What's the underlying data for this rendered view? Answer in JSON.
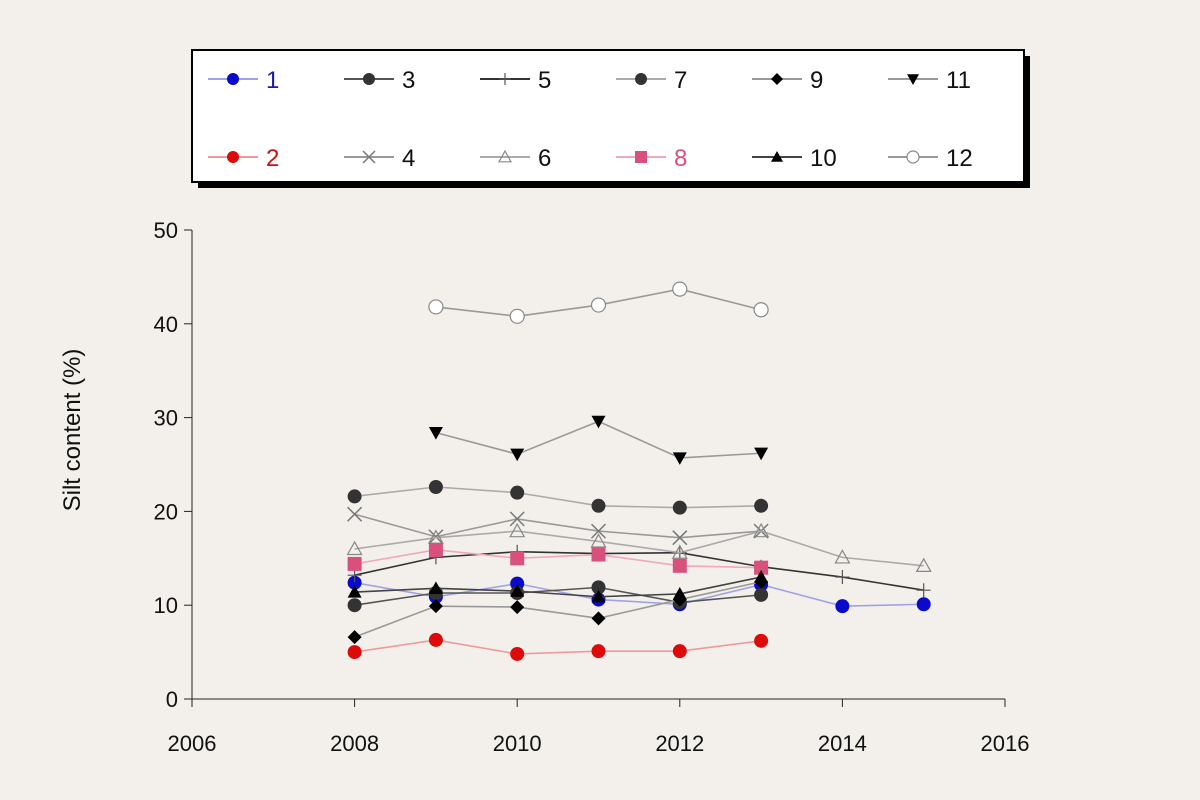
{
  "chart_data": {
    "type": "line",
    "title": "",
    "xlabel": "",
    "ylabel": "Silt content (%)",
    "xlim": [
      2006,
      2016
    ],
    "ylim": [
      0,
      50
    ],
    "xticks": [
      "2006",
      "2008",
      "2010",
      "2012",
      "2014",
      "2016"
    ],
    "yticks": [
      "0",
      "10",
      "20",
      "30",
      "40",
      "50"
    ],
    "grid": false,
    "legend_position": "top",
    "series": [
      {
        "name": "1",
        "marker": "circle",
        "color": "#0a0acc",
        "line": "#9fa3e6",
        "label_color": "#1a1aa8",
        "x": [
          2008,
          2009,
          2010,
          2011,
          2012,
          2013,
          2014,
          2015
        ],
        "y": [
          12.4,
          10.9,
          12.3,
          10.6,
          10.1,
          12.2,
          9.9,
          10.1
        ]
      },
      {
        "name": "2",
        "marker": "circle",
        "color": "#dd0a0a",
        "line": "#ef9a9a",
        "label_color": "#cc1111",
        "x": [
          2008,
          2009,
          2010,
          2011,
          2012,
          2013
        ],
        "y": [
          5.0,
          6.3,
          4.8,
          5.1,
          5.1,
          6.2
        ]
      },
      {
        "name": "3",
        "marker": "circle",
        "color": "#333333",
        "line": "#555555",
        "label_color": "#111111",
        "x": [
          2008,
          2009,
          2010,
          2011,
          2012,
          2013
        ],
        "y": [
          10.0,
          11.3,
          11.3,
          11.9,
          10.3,
          11.1
        ]
      },
      {
        "name": "4",
        "marker": "x",
        "color": "#777777",
        "line": "#999999",
        "label_color": "#111111",
        "x": [
          2008,
          2009,
          2010,
          2011,
          2012,
          2013
        ],
        "y": [
          19.7,
          17.3,
          19.2,
          17.9,
          17.2,
          17.9
        ]
      },
      {
        "name": "5",
        "marker": "plus",
        "color": "#555555",
        "line": "#333333",
        "label_color": "#111111",
        "x": [
          2008,
          2009,
          2010,
          2011,
          2012,
          2013,
          2014,
          2015
        ],
        "y": [
          13.2,
          15.1,
          15.7,
          15.5,
          15.6,
          14.1,
          13.0,
          11.6
        ]
      },
      {
        "name": "6",
        "marker": "triangle-open",
        "color": "#888888",
        "line": "#aaaaaa",
        "label_color": "#111111",
        "x": [
          2008,
          2009,
          2010,
          2011,
          2012,
          2013,
          2014,
          2015
        ],
        "y": [
          16.0,
          17.2,
          17.9,
          16.8,
          15.6,
          17.9,
          15.1,
          14.2
        ]
      },
      {
        "name": "7",
        "marker": "circle",
        "color": "#333333",
        "line": "#aaaaaa",
        "label_color": "#111111",
        "x": [
          2008,
          2009,
          2010,
          2011,
          2012,
          2013
        ],
        "y": [
          21.6,
          22.6,
          22.0,
          20.6,
          20.4,
          20.6
        ]
      },
      {
        "name": "8",
        "marker": "square",
        "color": "#d9507f",
        "line": "#f0a8bf",
        "label_color": "#d9507f",
        "x": [
          2008,
          2009,
          2010,
          2011,
          2012,
          2013
        ],
        "y": [
          14.4,
          15.9,
          15.0,
          15.4,
          14.2,
          14.0
        ]
      },
      {
        "name": "9",
        "marker": "diamond",
        "color": "#000000",
        "line": "#999999",
        "label_color": "#111111",
        "x": [
          2008,
          2009,
          2010,
          2011,
          2012,
          2013
        ],
        "y": [
          6.6,
          9.9,
          9.8,
          8.6,
          10.6,
          12.5
        ]
      },
      {
        "name": "10",
        "marker": "triangle",
        "color": "#000000",
        "line": "#444444",
        "label_color": "#111111",
        "x": [
          2008,
          2009,
          2010,
          2011,
          2012,
          2013
        ],
        "y": [
          11.4,
          11.8,
          11.5,
          10.9,
          11.2,
          13.0
        ]
      },
      {
        "name": "11",
        "marker": "triangle-down",
        "color": "#000000",
        "line": "#999999",
        "label_color": "#111111",
        "x": [
          2009,
          2010,
          2011,
          2012,
          2013
        ],
        "y": [
          28.4,
          26.1,
          29.6,
          25.7,
          26.2
        ]
      },
      {
        "name": "12",
        "marker": "circle-open",
        "color": "#888888",
        "line": "#999999",
        "label_color": "#111111",
        "x": [
          2009,
          2010,
          2011,
          2012,
          2013
        ],
        "y": [
          41.8,
          40.8,
          42.0,
          43.7,
          41.5
        ]
      }
    ]
  }
}
